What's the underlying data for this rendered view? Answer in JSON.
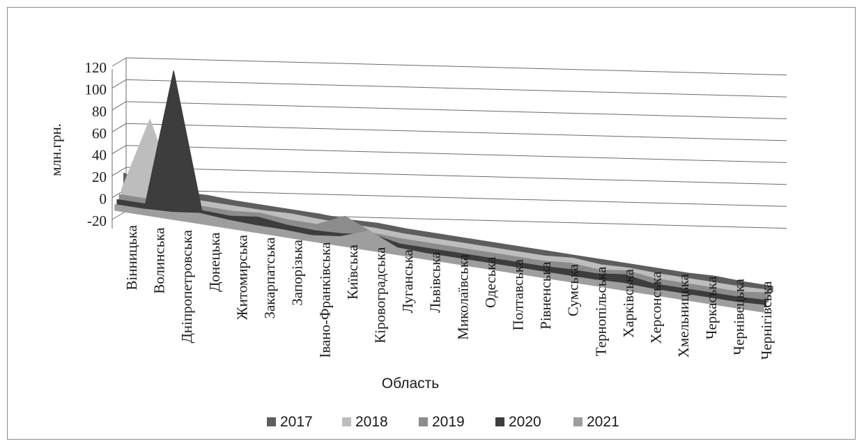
{
  "chart_data": {
    "type": "area",
    "subtype": "3d-area",
    "title": "",
    "xlabel": "Область",
    "ylabel": "млн.грн.",
    "ylim": [
      -20,
      120
    ],
    "yticks": [
      -20,
      0,
      20,
      40,
      60,
      80,
      100,
      120
    ],
    "grid": true,
    "legend_position": "bottom",
    "categories": [
      "Вінницька",
      "Волинська",
      "Дніпропетровська",
      "Донецька",
      "Житомирська",
      "Закарпатська",
      "Запорізька",
      "Івано-Франківська",
      "Київська",
      "Кіровоградська",
      "Луганська",
      "Львівська",
      "Миколаївська",
      "Одеська",
      "Полтавська",
      "Рівненська",
      "Сумська",
      "Тернопільська",
      "Харківська",
      "Херсонська",
      "Хмельницька",
      "Черкаська",
      "Чернівецька",
      "Чернігівська"
    ],
    "series": [
      {
        "name": "2017",
        "color": "#5e5e5e",
        "values": [
          10,
          1,
          1,
          2,
          1,
          1,
          1,
          1,
          0,
          1,
          0,
          0,
          0,
          0,
          0,
          0,
          0,
          0,
          0,
          0,
          0,
          1,
          0,
          0
        ]
      },
      {
        "name": "2018",
        "color": "#bdbdbd",
        "values": [
          0,
          65,
          1,
          1,
          1,
          1,
          2,
          1,
          1,
          1,
          0,
          0,
          0,
          0,
          0,
          0,
          2,
          0,
          1,
          0,
          0,
          0,
          0,
          1
        ]
      },
      {
        "name": "2019",
        "color": "#8c8c8c",
        "values": [
          0,
          0,
          0,
          1,
          1,
          3,
          1,
          1,
          12,
          1,
          0,
          0,
          0,
          0,
          0,
          0,
          2,
          0,
          3,
          0,
          0,
          0,
          0,
          3
        ]
      },
      {
        "name": "2020",
        "color": "#3d3d3d",
        "values": [
          0,
          0,
          120,
          2,
          1,
          4,
          1,
          0,
          1,
          5,
          0,
          0,
          0,
          0,
          0,
          0,
          1,
          1,
          4,
          0,
          0,
          0,
          0,
          1
        ]
      },
      {
        "name": "2021",
        "color": "#9e9e9e",
        "values": [
          0,
          0,
          1,
          4,
          2,
          1,
          1,
          0,
          3,
          12,
          1,
          0,
          0,
          0,
          0,
          0,
          0,
          0,
          1,
          0,
          0,
          0,
          0,
          1
        ]
      }
    ]
  }
}
